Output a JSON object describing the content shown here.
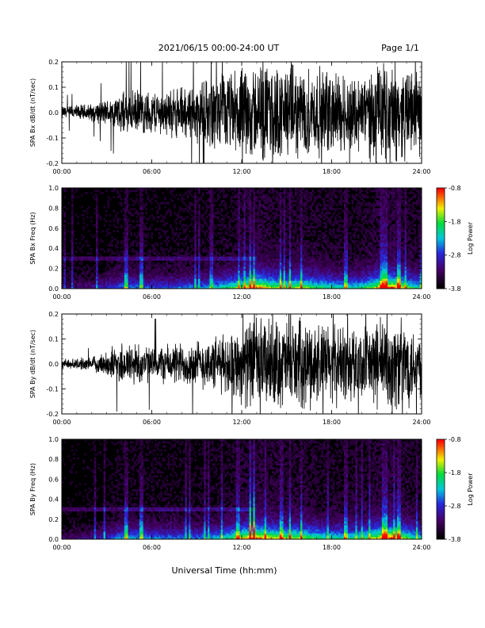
{
  "header": {
    "title": "2021/06/15  00:00-24:00 UT",
    "page": "Page 1/1"
  },
  "footer": {
    "xlabel": "Universal Time (hh:mm)"
  },
  "chart_data": [
    {
      "type": "line",
      "ylabel": "SPA Bx dB/dt (nT/sec)",
      "ylim": [
        -0.2,
        0.2
      ],
      "yticks": [
        "-0.2",
        "-0.1",
        "0.0",
        "0.1",
        "0.2"
      ],
      "ytick_values": [
        -0.2,
        -0.1,
        0.0,
        0.1,
        0.2
      ],
      "xticks": [
        "00:00",
        "06:00",
        "12:00",
        "18:00",
        "24:00"
      ],
      "xlim_hours": [
        0,
        24
      ],
      "color": "#000000",
      "amplitude_envelope_hours": [
        0,
        2,
        3,
        4,
        5,
        6,
        7,
        8,
        9,
        10,
        11,
        12,
        13,
        14,
        15,
        16,
        17,
        18,
        19,
        20,
        21,
        22,
        23,
        24
      ],
      "amplitude_envelope": [
        0.03,
        0.04,
        0.06,
        0.09,
        0.1,
        0.1,
        0.1,
        0.12,
        0.13,
        0.16,
        0.18,
        0.2,
        0.22,
        0.22,
        0.21,
        0.2,
        0.2,
        0.19,
        0.18,
        0.18,
        0.22,
        0.22,
        0.2,
        0.18
      ]
    },
    {
      "type": "heatmap",
      "ylabel": "SPA Bx Freq (Hz)",
      "ylim": [
        0,
        1.0
      ],
      "yticks": [
        "0.0",
        "0.2",
        "0.4",
        "0.6",
        "0.8",
        "1.0"
      ],
      "ytick_values": [
        0,
        0.2,
        0.4,
        0.6,
        0.8,
        1.0
      ],
      "xticks": [
        "00:00",
        "06:00",
        "12:00",
        "18:00",
        "24:00"
      ],
      "xlim_hours": [
        0,
        24
      ],
      "colorbar": {
        "label": "Log Power",
        "ticks": [
          "-0.8",
          "-1.8",
          "-2.8",
          "-3.8"
        ],
        "tick_values": [
          -0.8,
          -1.8,
          -2.8,
          -3.8
        ]
      },
      "activity_hours": [
        0,
        2,
        3,
        4,
        5,
        6,
        7,
        8,
        9,
        10,
        11,
        12,
        13,
        14,
        15,
        16,
        17,
        18,
        19,
        20,
        21,
        22,
        23,
        24
      ],
      "activity": [
        0.15,
        0.2,
        0.3,
        0.4,
        0.4,
        0.35,
        0.35,
        0.4,
        0.4,
        0.45,
        0.55,
        0.7,
        0.85,
        0.7,
        0.65,
        0.7,
        0.6,
        0.55,
        0.5,
        0.55,
        0.75,
        0.9,
        0.65,
        0.5
      ],
      "bright_hours": [
        4.3,
        5.3,
        12.6,
        12.8,
        14.6,
        15.2,
        16.0,
        18.9,
        19.0,
        21.5,
        21.6,
        22.5
      ]
    },
    {
      "type": "line",
      "ylabel": "SPA By dB/dt (nT/sec)",
      "ylim": [
        -0.2,
        0.2
      ],
      "yticks": [
        "-0.2",
        "-0.1",
        "0.0",
        "0.1",
        "0.2"
      ],
      "ytick_values": [
        -0.2,
        -0.1,
        0.0,
        0.1,
        0.2
      ],
      "xticks": [
        "00:00",
        "06:00",
        "12:00",
        "18:00",
        "24:00"
      ],
      "xlim_hours": [
        0,
        24
      ],
      "color": "#000000",
      "amplitude_envelope_hours": [
        0,
        2,
        3,
        4,
        5,
        6,
        7,
        8,
        9,
        10,
        11,
        12,
        13,
        14,
        15,
        16,
        17,
        18,
        19,
        20,
        21,
        22,
        23,
        24
      ],
      "amplitude_envelope": [
        0.02,
        0.03,
        0.06,
        0.1,
        0.1,
        0.08,
        0.09,
        0.1,
        0.11,
        0.12,
        0.14,
        0.18,
        0.22,
        0.2,
        0.2,
        0.2,
        0.19,
        0.18,
        0.18,
        0.16,
        0.2,
        0.22,
        0.2,
        0.15
      ]
    },
    {
      "type": "heatmap",
      "ylabel": "SPA By Freq (Hz)",
      "ylim": [
        0,
        1.0
      ],
      "yticks": [
        "0.0",
        "0.2",
        "0.4",
        "0.6",
        "0.8",
        "1.0"
      ],
      "ytick_values": [
        0,
        0.2,
        0.4,
        0.6,
        0.8,
        1.0
      ],
      "xticks": [
        "00:00",
        "06:00",
        "12:00",
        "18:00",
        "24:00"
      ],
      "xlim_hours": [
        0,
        24
      ],
      "colorbar": {
        "label": "Log Power",
        "ticks": [
          "-0.8",
          "-1.8",
          "-2.8",
          "-3.8"
        ],
        "tick_values": [
          -0.8,
          -1.8,
          -2.8,
          -3.8
        ]
      },
      "activity_hours": [
        0,
        2,
        3,
        4,
        5,
        6,
        7,
        8,
        9,
        10,
        11,
        12,
        13,
        14,
        15,
        16,
        17,
        18,
        19,
        20,
        21,
        22,
        23,
        24
      ],
      "activity": [
        0.15,
        0.2,
        0.3,
        0.45,
        0.45,
        0.4,
        0.4,
        0.4,
        0.4,
        0.45,
        0.55,
        0.75,
        0.85,
        0.75,
        0.7,
        0.7,
        0.6,
        0.55,
        0.55,
        0.55,
        0.75,
        0.9,
        0.65,
        0.5
      ],
      "bright_hours": [
        4.3,
        5.3,
        12.6,
        12.8,
        14.6,
        15.2,
        16.0,
        18.9,
        21.5,
        21.6,
        22.5
      ]
    }
  ]
}
